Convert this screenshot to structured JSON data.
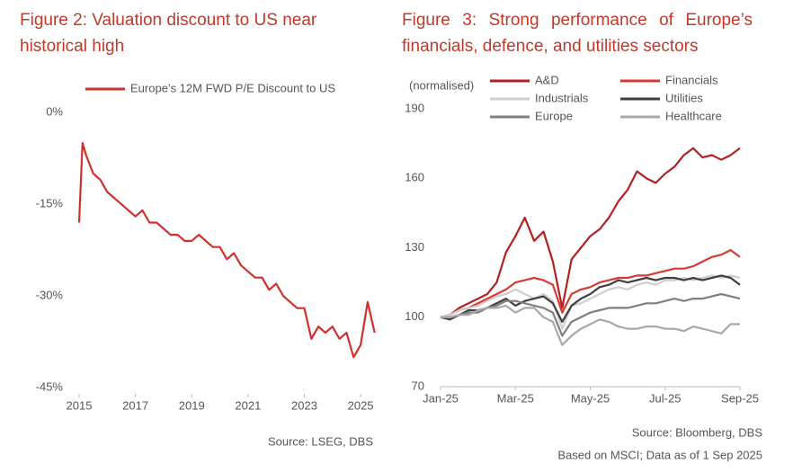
{
  "chart_data": [
    {
      "type": "line",
      "title": "Figure 2: Valuation discount to US near historical high",
      "source": "Source: LSEG, DBS",
      "x": [
        2015,
        2015.12,
        2015.25,
        2015.5,
        2015.75,
        2016,
        2016.25,
        2016.5,
        2016.75,
        2017,
        2017.25,
        2017.5,
        2017.75,
        2018,
        2018.25,
        2018.5,
        2018.75,
        2019,
        2019.25,
        2019.5,
        2019.75,
        2020,
        2020.25,
        2020.5,
        2020.75,
        2021,
        2021.25,
        2021.5,
        2021.75,
        2022,
        2022.25,
        2022.5,
        2022.75,
        2023,
        2023.25,
        2023.5,
        2023.75,
        2024,
        2024.25,
        2024.5,
        2024.75,
        2025,
        2025.25,
        2025.5
      ],
      "series": [
        {
          "name": "Europe’s 12M FWD P/E Discount to US",
          "color": "#d0312d",
          "values": [
            -18,
            -5,
            -7,
            -10,
            -11,
            -13,
            -14,
            -15,
            -16,
            -17,
            -16,
            -18,
            -18,
            -19,
            -20,
            -20,
            -21,
            -21,
            -20,
            -21,
            -22,
            -22,
            -24,
            -23,
            -25,
            -26,
            -27,
            -27,
            -29,
            -28,
            -30,
            -31,
            -32,
            -32,
            -37,
            -35,
            -36,
            -35,
            -37,
            -36,
            -40,
            -38,
            -31,
            -36
          ]
        }
      ],
      "xlim": [
        2015,
        2025.7
      ],
      "xticks": [
        2015,
        2017,
        2019,
        2021,
        2023,
        2025
      ],
      "ylim": [
        -46,
        0
      ],
      "yticks": [
        {
          "value": 0,
          "label": "0%"
        },
        {
          "value": -15,
          "label": "-15%"
        },
        {
          "value": -30,
          "label": "-30%"
        },
        {
          "value": -45,
          "label": "-45%"
        }
      ]
    },
    {
      "type": "line",
      "title": "Figure 3: Strong performance of Europe’s financials, defence, and utilities sectors",
      "y_label": "(normalised)",
      "source": "Source: Bloomberg, DBS",
      "note": "Based on MSCI; Data as of 1 Sep 2025",
      "x": [
        0,
        0.25,
        0.5,
        0.75,
        1,
        1.25,
        1.5,
        1.75,
        2,
        2.25,
        2.5,
        2.75,
        3,
        3.25,
        3.5,
        3.75,
        4,
        4.25,
        4.5,
        4.75,
        5,
        5.25,
        5.5,
        5.75,
        6,
        6.25,
        6.5,
        6.75,
        7,
        7.25,
        7.5,
        7.75,
        8
      ],
      "series": [
        {
          "name": "A&D",
          "color": "#b22222",
          "values": [
            100,
            101,
            104,
            106,
            108,
            110,
            115,
            128,
            135,
            143,
            133,
            137,
            124,
            104,
            125,
            130,
            135,
            138,
            143,
            150,
            155,
            163,
            160,
            158,
            162,
            165,
            170,
            173,
            169,
            170,
            168,
            170,
            173
          ]
        },
        {
          "name": "Financials",
          "color": "#d63a32",
          "values": [
            100,
            101,
            103,
            104,
            106,
            108,
            110,
            112,
            115,
            116,
            117,
            116,
            114,
            102,
            110,
            112,
            113,
            115,
            116,
            117,
            117,
            118,
            118,
            119,
            120,
            121,
            121,
            122,
            124,
            126,
            127,
            129,
            126
          ]
        },
        {
          "name": "Industrials",
          "color": "#cfcfcf",
          "values": [
            100,
            101,
            103,
            104,
            105,
            107,
            109,
            110,
            112,
            110,
            108,
            110,
            107,
            95,
            105,
            106,
            108,
            110,
            112,
            113,
            112,
            114,
            115,
            114,
            116,
            116,
            117,
            116,
            117,
            118,
            117,
            118,
            117
          ]
        },
        {
          "name": "Utilities",
          "color": "#3f3f3f",
          "values": [
            100,
            99,
            101,
            103,
            103,
            104,
            106,
            108,
            105,
            107,
            108,
            109,
            106,
            98,
            105,
            108,
            110,
            113,
            114,
            116,
            115,
            116,
            117,
            116,
            117,
            117,
            116,
            117,
            116,
            117,
            118,
            117,
            114
          ]
        },
        {
          "name": "Europe",
          "color": "#7f7f7f",
          "values": [
            100,
            100,
            101,
            102,
            102,
            104,
            105,
            107,
            107,
            106,
            105,
            104,
            102,
            92,
            98,
            100,
            102,
            103,
            104,
            104,
            104,
            105,
            106,
            106,
            107,
            108,
            107,
            108,
            108,
            109,
            110,
            109,
            108
          ]
        },
        {
          "name": "Healthcare",
          "color": "#a8a8a8",
          "values": [
            100,
            100,
            101,
            101,
            103,
            104,
            104,
            105,
            102,
            104,
            104,
            100,
            98,
            88,
            92,
            95,
            97,
            99,
            98,
            96,
            95,
            95,
            96,
            96,
            95,
            95,
            94,
            96,
            95,
            94,
            93,
            97,
            97
          ]
        }
      ],
      "xlim": [
        0,
        8
      ],
      "xticks": [
        {
          "value": 0,
          "label": "Jan-25"
        },
        {
          "value": 2,
          "label": "Mar-25"
        },
        {
          "value": 4,
          "label": "May-25"
        },
        {
          "value": 6,
          "label": "Jul-25"
        },
        {
          "value": 8,
          "label": "Sep-25"
        }
      ],
      "ylim": [
        70,
        190
      ],
      "yticks": [
        70,
        100,
        130,
        160,
        190
      ]
    }
  ]
}
